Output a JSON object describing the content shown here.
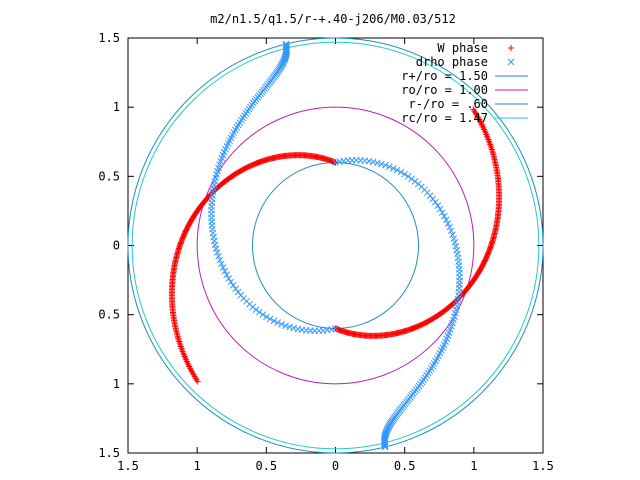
{
  "chart_data": {
    "type": "scatter",
    "title": "m2/n1.5/q1.5/r-+.40-j206/M0.03/512",
    "xlim": [
      -1.5,
      1.5
    ],
    "ylim": [
      -1.5,
      1.5
    ],
    "x_ticks": [
      {
        "value": -1.5,
        "label": "1.5"
      },
      {
        "value": -1.0,
        "label": "1"
      },
      {
        "value": -0.5,
        "label": "0.5"
      },
      {
        "value": 0.0,
        "label": "0"
      },
      {
        "value": 0.5,
        "label": "0.5"
      },
      {
        "value": 1.0,
        "label": "1"
      },
      {
        "value": 1.5,
        "label": "1.5"
      }
    ],
    "y_ticks": [
      {
        "value": 1.5,
        "label": "1.5"
      },
      {
        "value": 1.0,
        "label": "1"
      },
      {
        "value": 0.5,
        "label": "0.5"
      },
      {
        "value": 0.0,
        "label": "0"
      },
      {
        "value": -0.5,
        "label": "0.5"
      },
      {
        "value": -1.0,
        "label": "1"
      },
      {
        "value": -1.5,
        "label": "1.5"
      }
    ],
    "grid": false,
    "legend_position": "top-right",
    "series": [
      {
        "name": "W phase",
        "marker": "plus",
        "color": "#ff0000",
        "curve": "outer",
        "from_r": 0.6,
        "to_r": 1.4,
        "half_angle": 2.35
      },
      {
        "name": "drho phase",
        "marker": "cross",
        "color": "#3399ff",
        "curve": "inner",
        "from_r": 0.6,
        "to_r": 1.5,
        "half_angle": 2.9
      }
    ],
    "circles": [
      {
        "name": "r+/ro = 1.50",
        "r": 1.5,
        "color": "#1a8fbf"
      },
      {
        "name": "ro/ro = 1.00",
        "r": 1.0,
        "color": "#bf1abf"
      },
      {
        "name": "r-/ro = .60",
        "r": 0.6,
        "color": "#1a8fbf"
      },
      {
        "name": "rc/ro = 1.47",
        "r": 1.47,
        "color": "#21c9c9"
      }
    ]
  }
}
